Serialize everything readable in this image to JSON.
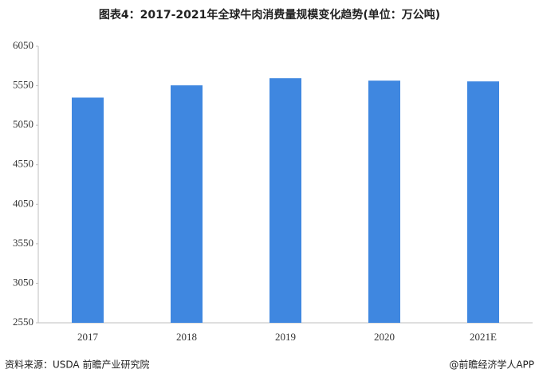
{
  "chart_data": {
    "type": "bar",
    "title": "图表4：2017-2021年全球牛肉消费量规模变化趋势(单位：万公吨)",
    "categories": [
      "2017",
      "2018",
      "2019",
      "2020",
      "2021E"
    ],
    "values": [
      5400,
      5555,
      5645,
      5615,
      5605
    ],
    "color": "#3f87e0",
    "ylim": [
      2550,
      6050
    ],
    "yticks": [
      2550,
      3050,
      3550,
      4050,
      4550,
      5050,
      5550,
      6050
    ],
    "grid": false,
    "source": "资料来源：USDA 前瞻产业研究院",
    "credit": "@前瞻经济学人APP"
  }
}
